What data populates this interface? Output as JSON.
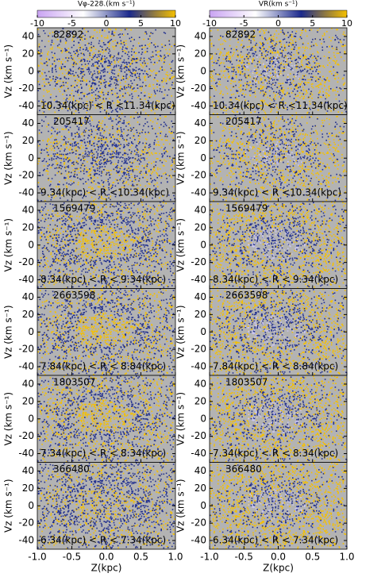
{
  "chart_data": [
    {
      "type": "heatmap",
      "colorbar": {
        "label": "Vφ-228.(km s⁻¹)",
        "lim": [
          -10,
          10
        ],
        "ticks": [
          -10,
          -5,
          0,
          5,
          10
        ],
        "colors": [
          "#c9a3f2",
          "#ffffff",
          "#1c2a8c",
          "#f5c000"
        ]
      },
      "xlabel": "Z(kpc)",
      "xlim": [
        -1,
        1
      ],
      "xticks": [
        {
          "value": -1,
          "label": "-1.0"
        },
        {
          "value": -0.5,
          "label": "-0.5"
        },
        {
          "value": 0,
          "label": "0.0"
        },
        {
          "value": 0.5,
          "label": "0.5"
        },
        {
          "value": 1,
          "label": "1.0"
        }
      ],
      "ylabel": "Vz (km s⁻¹)",
      "ylim": [
        -50,
        50
      ],
      "yticks": [
        40,
        20,
        0,
        -20,
        -40
      ],
      "panels": [
        {
          "count": 82892,
          "region": "10.34(kpc) < R <11.34(kpc)"
        },
        {
          "count": 205417,
          "region": "9.34(kpc) < R <10.34(kpc)"
        },
        {
          "count": 1569479,
          "region": "8.34(kpc) < R < 9.34(kpc)"
        },
        {
          "count": 2663598,
          "region": "7.84(kpc) < R < 8.84(kpc)"
        },
        {
          "count": 1803507,
          "region": "7.34(kpc) < R < 8.34(kpc)"
        },
        {
          "count": 366480,
          "region": "6.34(kpc) < R < 7.34(kpc)"
        }
      ]
    },
    {
      "type": "heatmap",
      "colorbar": {
        "label": "VR(km s⁻¹)",
        "lim": [
          -10,
          10
        ],
        "ticks": [
          -10,
          -5,
          0,
          5,
          10
        ],
        "colors": [
          "#c9a3f2",
          "#ffffff",
          "#1c2a8c",
          "#f5c000"
        ]
      },
      "xlabel": "Z(kpc)",
      "xlim": [
        -1,
        1
      ],
      "xticks": [
        {
          "value": -1,
          "label": "-1.0"
        },
        {
          "value": -0.5,
          "label": "-0.5"
        },
        {
          "value": 0,
          "label": "0.0"
        },
        {
          "value": 0.5,
          "label": "0.5"
        },
        {
          "value": 1,
          "label": "1.0"
        }
      ],
      "ylabel": "Vz (km s⁻¹)",
      "ylim": [
        -50,
        50
      ],
      "yticks": [
        40,
        20,
        0,
        -20,
        -40
      ],
      "panels": [
        {
          "count": 82892,
          "region": "10.34(kpc) < R <11.34(kpc)"
        },
        {
          "count": 205417,
          "region": "9.34(kpc) < R <10.34(kpc)"
        },
        {
          "count": 1569479,
          "region": "8.34(kpc) < R < 9.34(kpc)"
        },
        {
          "count": 2663598,
          "region": "7.84(kpc) < R < 8.84(kpc)"
        },
        {
          "count": 1803507,
          "region": "7.34(kpc) < R < 8.34(kpc)"
        },
        {
          "count": 366480,
          "region": "6.34(kpc) < R < 7.34(kpc)"
        }
      ]
    }
  ]
}
